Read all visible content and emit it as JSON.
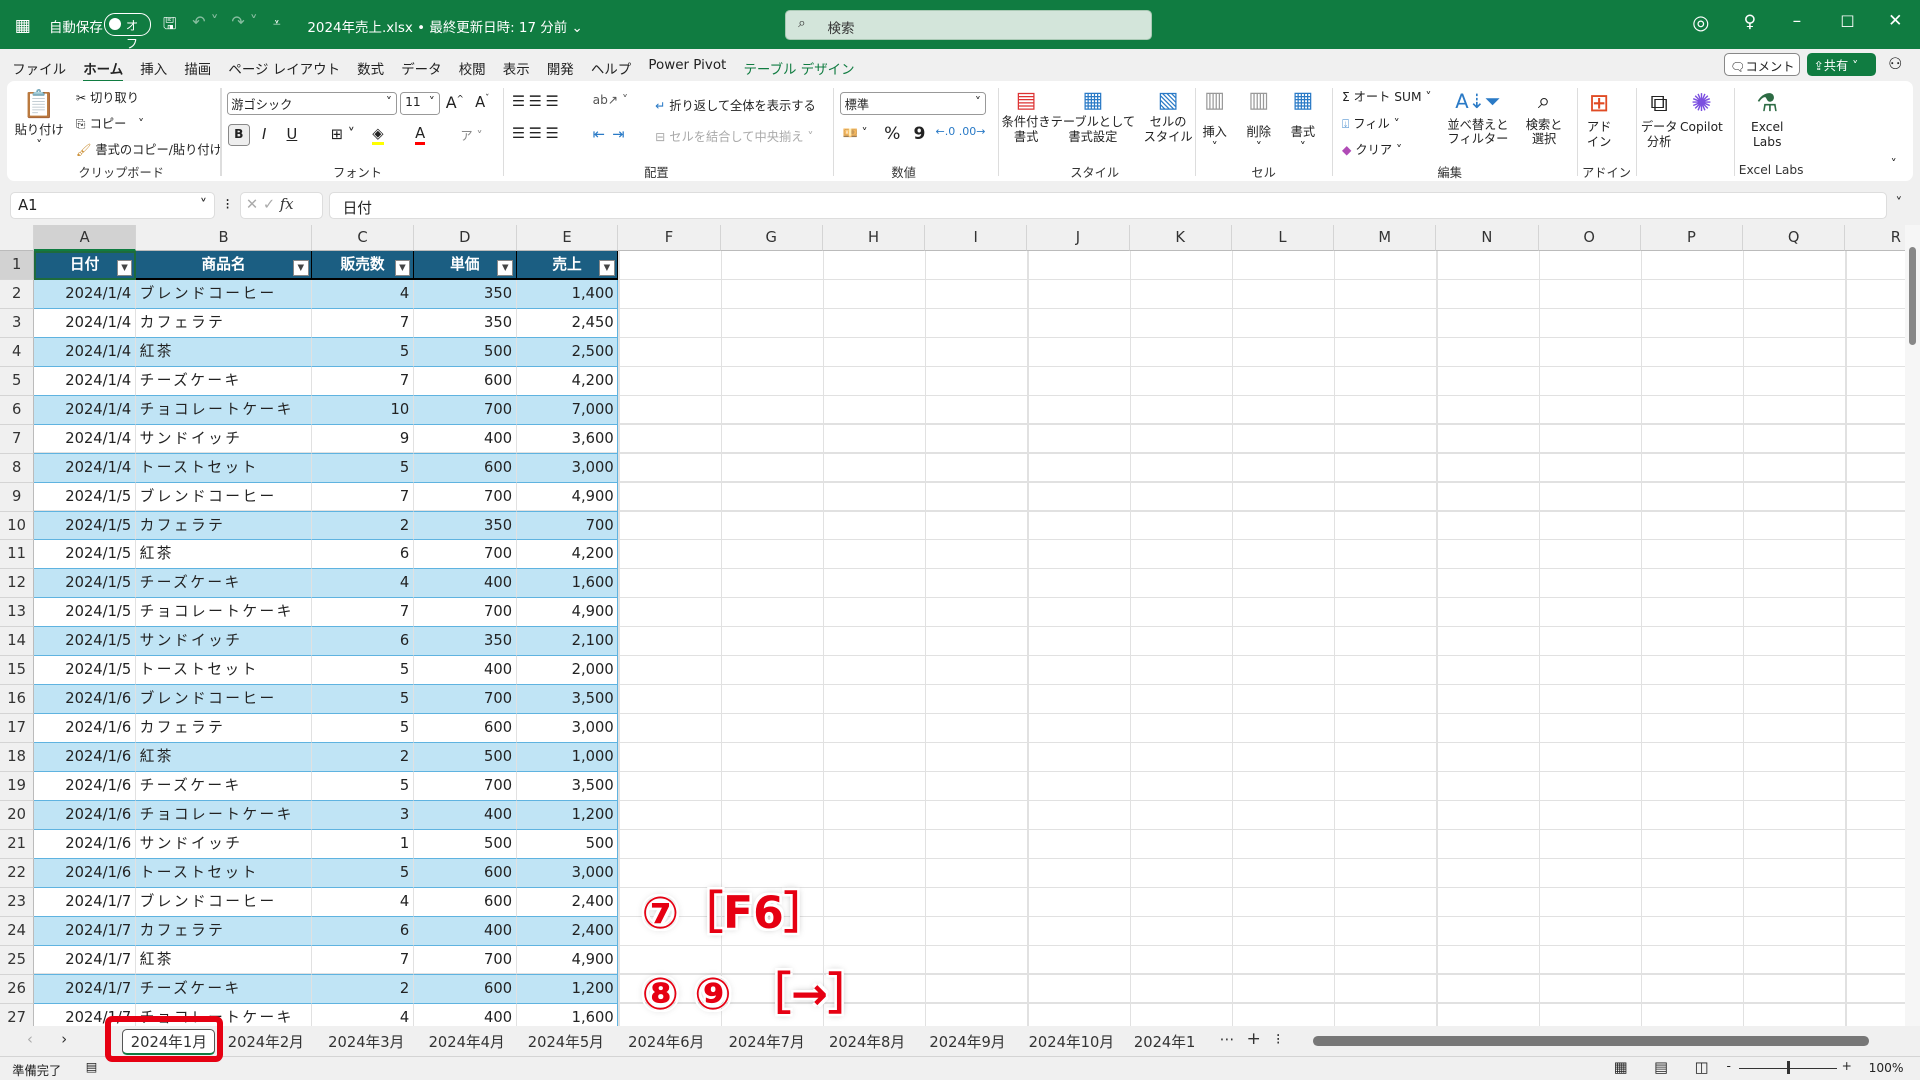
{
  "titlebar": {
    "autosave_label": "自動保存",
    "autosave_state": "オフ",
    "file_title": "2024年売上.xlsx • 最終更新日時: 17 分前 ⌄",
    "search_placeholder": "検索"
  },
  "menu": [
    "ファイル",
    "ホーム",
    "挿入",
    "描画",
    "ページ レイアウト",
    "数式",
    "データ",
    "校閲",
    "表示",
    "開発",
    "ヘルプ",
    "Power Pivot",
    "テーブル デザイン"
  ],
  "menu_active": "ホーム",
  "menu_right": {
    "comment": "コメント",
    "share": "共有"
  },
  "ribbon": {
    "clipboard": {
      "paste": "貼り付け",
      "cut": "切り取り",
      "copy": "コピー",
      "format_painter": "書式のコピー/貼り付け",
      "label": "クリップボード"
    },
    "font": {
      "name": "游ゴシック",
      "size": "11",
      "bold": "B",
      "italic": "I",
      "underline": "U",
      "label": "フォント"
    },
    "alignment": {
      "wrap": "折り返して全体を表示する",
      "merge": "セルを結合して中央揃え",
      "label": "配置"
    },
    "number": {
      "format": "標準",
      "percent": "%",
      "comma": "9",
      "label": "数値"
    },
    "styles": {
      "conditional": "条件付き\n書式",
      "as_table": "テーブルとして\n書式設定",
      "cell_styles": "セルの\nスタイル",
      "label": "スタイル"
    },
    "cells": {
      "insert": "挿入",
      "delete": "削除",
      "format": "書式",
      "label": "セル"
    },
    "editing": {
      "autosum": "Σ オート SUM",
      "fill": "フィル",
      "clear": "クリア",
      "sort": "並べ替えと\nフィルター",
      "find": "検索と\n選択",
      "label": "編集"
    },
    "addins": {
      "addins": "アド\nイン",
      "label": "アドイン"
    },
    "analysis": {
      "data_analysis": "データ\n分析",
      "copilot": "Copilot"
    },
    "excel_labs": {
      "button": "Excel\nLabs",
      "label": "Excel Labs"
    }
  },
  "formula_bar": {
    "name_box": "A1",
    "fx": "fx",
    "formula": "日付"
  },
  "columns": [
    "A",
    "B",
    "C",
    "D",
    "E",
    "F",
    "G",
    "H",
    "I",
    "J",
    "K",
    "L",
    "M",
    "N",
    "O",
    "P",
    "Q",
    "R"
  ],
  "table_headers": [
    "日付",
    "商品名",
    "販売数",
    "単価",
    "売上"
  ],
  "rows": [
    [
      "2024/1/4",
      "ブレンドコーヒー",
      "4",
      "350",
      "1,400"
    ],
    [
      "2024/1/4",
      "カフェラテ",
      "7",
      "350",
      "2,450"
    ],
    [
      "2024/1/4",
      "紅茶",
      "5",
      "500",
      "2,500"
    ],
    [
      "2024/1/4",
      "チーズケーキ",
      "7",
      "600",
      "4,200"
    ],
    [
      "2024/1/4",
      "チョコレートケーキ",
      "10",
      "700",
      "7,000"
    ],
    [
      "2024/1/4",
      "サンドイッチ",
      "9",
      "400",
      "3,600"
    ],
    [
      "2024/1/4",
      "トーストセット",
      "5",
      "600",
      "3,000"
    ],
    [
      "2024/1/5",
      "ブレンドコーヒー",
      "7",
      "700",
      "4,900"
    ],
    [
      "2024/1/5",
      "カフェラテ",
      "2",
      "350",
      "700"
    ],
    [
      "2024/1/5",
      "紅茶",
      "6",
      "700",
      "4,200"
    ],
    [
      "2024/1/5",
      "チーズケーキ",
      "4",
      "400",
      "1,600"
    ],
    [
      "2024/1/5",
      "チョコレートケーキ",
      "7",
      "700",
      "4,900"
    ],
    [
      "2024/1/5",
      "サンドイッチ",
      "6",
      "350",
      "2,100"
    ],
    [
      "2024/1/5",
      "トーストセット",
      "5",
      "400",
      "2,000"
    ],
    [
      "2024/1/6",
      "ブレンドコーヒー",
      "5",
      "700",
      "3,500"
    ],
    [
      "2024/1/6",
      "カフェラテ",
      "5",
      "600",
      "3,000"
    ],
    [
      "2024/1/6",
      "紅茶",
      "2",
      "500",
      "1,000"
    ],
    [
      "2024/1/6",
      "チーズケーキ",
      "5",
      "700",
      "3,500"
    ],
    [
      "2024/1/6",
      "チョコレートケーキ",
      "3",
      "400",
      "1,200"
    ],
    [
      "2024/1/6",
      "サンドイッチ",
      "1",
      "500",
      "500"
    ],
    [
      "2024/1/6",
      "トーストセット",
      "5",
      "600",
      "3,000"
    ],
    [
      "2024/1/7",
      "ブレンドコーヒー",
      "4",
      "600",
      "2,400"
    ],
    [
      "2024/1/7",
      "カフェラテ",
      "6",
      "400",
      "2,400"
    ],
    [
      "2024/1/7",
      "紅茶",
      "7",
      "700",
      "4,900"
    ],
    [
      "2024/1/7",
      "チーズケーキ",
      "2",
      "600",
      "1,200"
    ],
    [
      "2024/1/7",
      "チョコレートケーキ",
      "4",
      "400",
      "1,600"
    ]
  ],
  "sheet_tabs": [
    "2024年1月",
    "2024年2月",
    "2024年3月",
    "2024年4月",
    "2024年5月",
    "2024年6月",
    "2024年7月",
    "2024年8月",
    "2024年9月",
    "2024年10月",
    "2024年1"
  ],
  "active_sheet": "2024年1月",
  "status": {
    "ready": "準備完了",
    "zoom": "100%"
  },
  "annotations": {
    "step7": "⑦［F6］",
    "step89": "⑧ ⑨ ［→］"
  },
  "colors": {
    "brand": "#107c41",
    "table_header": "#1b5e82",
    "band": "#c0e4f5",
    "annotation": "#e60012"
  }
}
